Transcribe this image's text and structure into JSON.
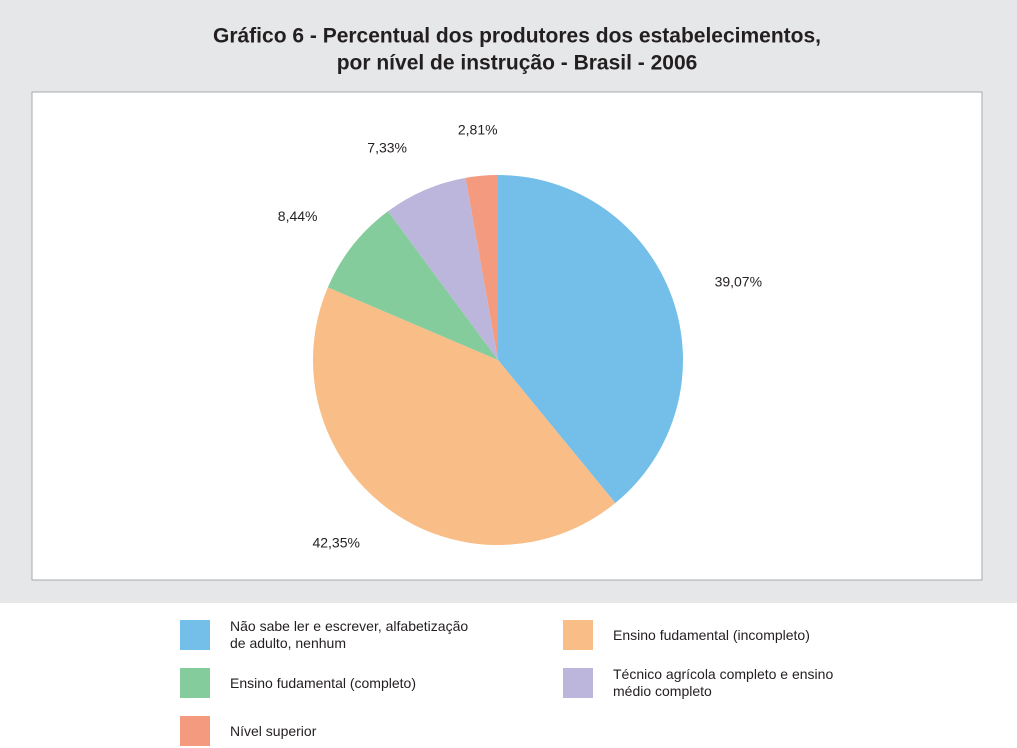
{
  "chart_data": {
    "type": "pie",
    "title": [
      "Gráfico 6 - Percentual dos produtores dos estabelecimentos,",
      "por nível de instrução - Brasil  - 2006"
    ],
    "categories": [
      "Não sabe ler e escrever, alfabetização de adulto, nenhum",
      "Ensino fudamental (incompleto)",
      "Ensino fudamental (completo)",
      "Técnico agrícola completo e ensino médio completo",
      "Nível superior"
    ],
    "values": [
      39.07,
      42.35,
      8.44,
      7.33,
      2.81
    ],
    "value_labels": [
      "39,07%",
      "42,35%",
      "8,44%",
      "7,33%",
      "2,81%"
    ],
    "colors": [
      "#74bfe9",
      "#f9bd87",
      "#84cc9b",
      "#bcb6dc",
      "#f49a7f"
    ]
  }
}
